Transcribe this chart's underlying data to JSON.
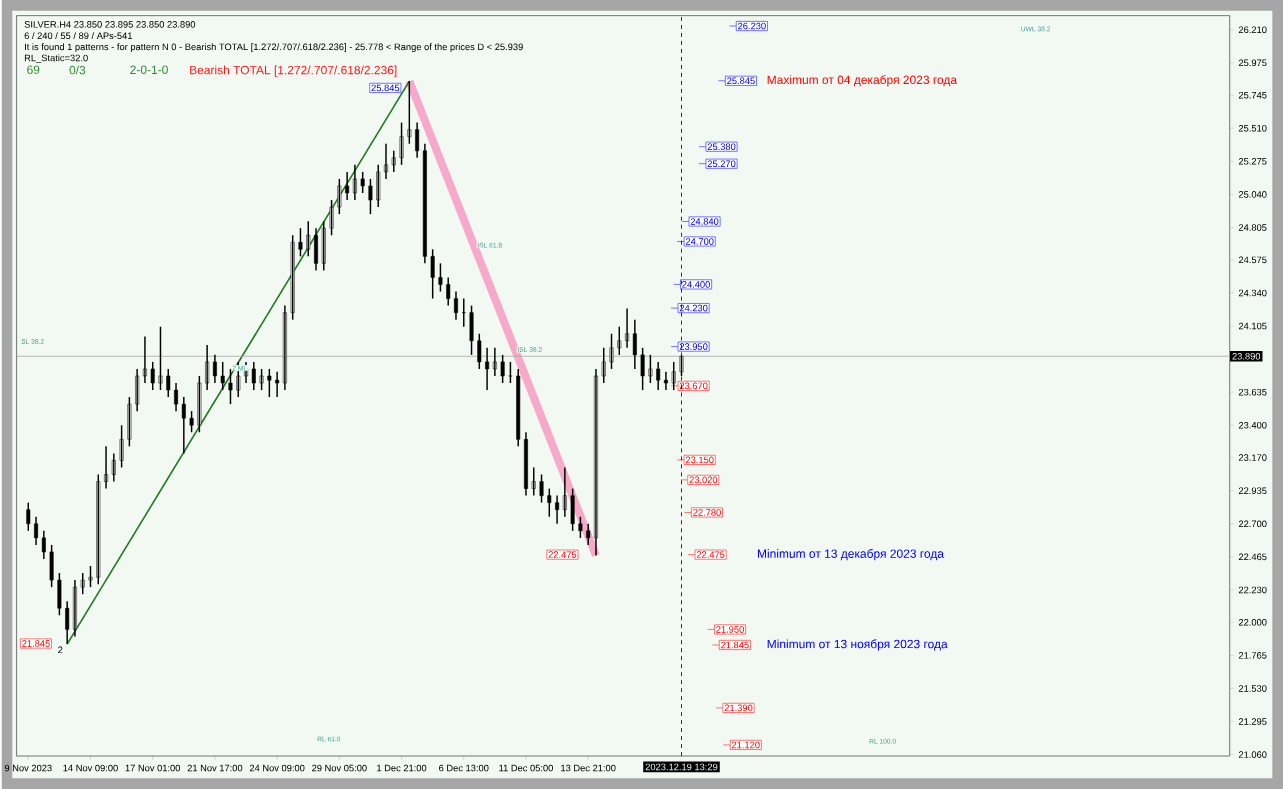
{
  "chart_data": {
    "type": "candlestick",
    "categories": [
      "9 Nov 2023",
      null,
      null,
      null,
      null,
      null,
      null,
      null,
      "14 Nov 09:00",
      null,
      null,
      null,
      null,
      null,
      null,
      null,
      "17 Nov 01:00",
      null,
      null,
      null,
      null,
      null,
      null,
      null,
      "21 Nov 17:00",
      null,
      null,
      null,
      null,
      null,
      null,
      null,
      "24 Nov 09:00",
      null,
      null,
      null,
      null,
      null,
      null,
      null,
      "29 Nov 05:00",
      null,
      null,
      null,
      null,
      null,
      null,
      null,
      "1 Dec 21:00",
      null,
      null,
      null,
      null,
      null,
      null,
      null,
      "6 Dec 13:00",
      null,
      null,
      null,
      null,
      null,
      null,
      null,
      "11 Dec 05:00",
      null,
      null,
      null,
      null,
      null,
      null,
      null,
      "13 Dec 21:00",
      null,
      null,
      null,
      null,
      null,
      null,
      null,
      null,
      null,
      null,
      null,
      null,
      null,
      null,
      null,
      null,
      null,
      null,
      null,
      null,
      null,
      null,
      null,
      null,
      null,
      null,
      null,
      null,
      null,
      null,
      null,
      null,
      null,
      null,
      null,
      null,
      null,
      null,
      null,
      null,
      null,
      null,
      null,
      null,
      null,
      null,
      null,
      null,
      null,
      null,
      null,
      null,
      null,
      null,
      null,
      null,
      null,
      null,
      null,
      null,
      null,
      null,
      null,
      null,
      null,
      null,
      null,
      null,
      null,
      null,
      null,
      null,
      null,
      null,
      null,
      null,
      null,
      null,
      null,
      null,
      null,
      null
    ],
    "ohlc": [
      [
        22.8,
        22.85,
        22.65,
        22.7
      ],
      [
        22.7,
        22.75,
        22.55,
        22.6
      ],
      [
        22.6,
        22.65,
        22.45,
        22.5
      ],
      [
        22.5,
        22.55,
        22.25,
        22.3
      ],
      [
        22.3,
        22.35,
        22.05,
        22.1
      ],
      [
        22.1,
        22.15,
        21.845,
        21.95
      ],
      [
        21.95,
        22.3,
        21.9,
        22.25
      ],
      [
        22.25,
        22.35,
        22.2,
        22.3
      ],
      [
        22.3,
        22.4,
        22.25,
        22.32
      ],
      [
        22.32,
        23.05,
        22.27,
        23.0
      ],
      [
        23.0,
        23.25,
        22.95,
        23.05
      ],
      [
        23.05,
        23.2,
        23.0,
        23.15
      ],
      [
        23.15,
        23.4,
        23.1,
        23.3
      ],
      [
        23.3,
        23.6,
        23.25,
        23.55
      ],
      [
        23.55,
        23.8,
        23.5,
        23.75
      ],
      [
        23.75,
        24.03,
        23.7,
        23.8
      ],
      [
        23.8,
        23.85,
        23.65,
        23.7
      ],
      [
        23.7,
        24.1,
        23.65,
        23.75
      ],
      [
        23.75,
        23.8,
        23.6,
        23.65
      ],
      [
        23.65,
        23.7,
        23.5,
        23.55
      ],
      [
        23.55,
        23.6,
        23.2,
        23.45
      ],
      [
        23.45,
        23.5,
        23.35,
        23.4
      ],
      [
        23.4,
        23.75,
        23.35,
        23.7
      ],
      [
        23.7,
        23.97,
        23.65,
        23.85
      ],
      [
        23.85,
        23.9,
        23.7,
        23.75
      ],
      [
        23.75,
        23.85,
        23.65,
        23.7
      ],
      [
        23.7,
        23.8,
        23.55,
        23.65
      ],
      [
        23.65,
        23.85,
        23.6,
        23.75
      ],
      [
        23.75,
        23.85,
        23.7,
        23.8
      ],
      [
        23.8,
        23.85,
        23.65,
        23.7
      ],
      [
        23.7,
        23.8,
        23.65,
        23.75
      ],
      [
        23.75,
        23.8,
        23.6,
        23.72
      ],
      [
        23.72,
        23.78,
        23.6,
        23.7
      ],
      [
        23.7,
        24.25,
        23.65,
        24.2
      ],
      [
        24.2,
        24.75,
        24.15,
        24.7
      ],
      [
        24.7,
        24.8,
        24.6,
        24.65
      ],
      [
        24.65,
        24.85,
        24.6,
        24.75
      ],
      [
        24.75,
        24.8,
        24.5,
        24.55
      ],
      [
        24.55,
        24.85,
        24.5,
        24.8
      ],
      [
        24.8,
        25.0,
        24.75,
        24.95
      ],
      [
        24.95,
        25.15,
        24.9,
        25.1
      ],
      [
        25.1,
        25.2,
        25.0,
        25.05
      ],
      [
        25.05,
        25.25,
        25.0,
        25.15
      ],
      [
        25.15,
        25.2,
        25.05,
        25.1
      ],
      [
        25.1,
        25.15,
        24.9,
        25.0
      ],
      [
        25.0,
        25.25,
        24.95,
        25.2
      ],
      [
        25.2,
        25.4,
        25.15,
        25.25
      ],
      [
        25.25,
        25.35,
        25.2,
        25.3
      ],
      [
        25.3,
        25.55,
        25.25,
        25.45
      ],
      [
        25.45,
        25.845,
        25.4,
        25.5
      ],
      [
        25.5,
        25.55,
        25.3,
        25.35
      ],
      [
        25.35,
        25.4,
        24.55,
        24.6
      ],
      [
        24.6,
        24.65,
        24.3,
        24.45
      ],
      [
        24.45,
        24.55,
        24.35,
        24.4
      ],
      [
        24.4,
        24.45,
        24.25,
        24.3
      ],
      [
        24.3,
        24.35,
        24.15,
        24.2
      ],
      [
        24.2,
        24.3,
        24.1,
        24.2
      ],
      [
        24.2,
        24.25,
        23.9,
        24.0
      ],
      [
        24.0,
        24.05,
        23.8,
        23.85
      ],
      [
        23.85,
        23.95,
        23.65,
        23.8
      ],
      [
        23.8,
        23.95,
        23.75,
        23.85
      ],
      [
        23.85,
        23.9,
        23.7,
        23.75
      ],
      [
        23.75,
        23.85,
        23.7,
        23.75
      ],
      [
        23.75,
        23.8,
        23.25,
        23.3
      ],
      [
        23.3,
        23.35,
        22.9,
        22.95
      ],
      [
        22.95,
        23.1,
        22.9,
        23.0
      ],
      [
        23.0,
        23.05,
        22.85,
        22.9
      ],
      [
        22.9,
        22.95,
        22.75,
        22.85
      ],
      [
        22.85,
        22.9,
        22.7,
        22.8
      ],
      [
        22.8,
        23.1,
        22.75,
        22.9
      ],
      [
        22.9,
        22.95,
        22.65,
        22.7
      ],
      [
        22.7,
        22.75,
        22.6,
        22.65
      ],
      [
        22.65,
        22.7,
        22.55,
        22.6
      ],
      [
        22.6,
        23.8,
        22.475,
        23.75
      ],
      [
        23.75,
        23.95,
        23.7,
        23.85
      ],
      [
        23.85,
        24.05,
        23.8,
        23.95
      ],
      [
        23.95,
        24.1,
        23.9,
        24.0
      ],
      [
        24.0,
        24.23,
        23.95,
        24.05
      ],
      [
        24.05,
        24.15,
        23.8,
        23.9
      ],
      [
        23.9,
        23.95,
        23.65,
        23.75
      ],
      [
        23.75,
        23.9,
        23.7,
        23.8
      ],
      [
        23.8,
        23.85,
        23.65,
        23.72
      ],
      [
        23.72,
        23.78,
        23.65,
        23.7
      ],
      [
        23.7,
        23.85,
        23.65,
        23.78
      ],
      [
        23.78,
        23.895,
        23.75,
        23.89
      ],
      null,
      null,
      null,
      null,
      null,
      null,
      null,
      null,
      null,
      null,
      null,
      null,
      null,
      null,
      null,
      null,
      null,
      null,
      null,
      null,
      null,
      null,
      null,
      null,
      null,
      null,
      null,
      null,
      null,
      null,
      null,
      null,
      null,
      null,
      null,
      null,
      null,
      null,
      null,
      null,
      null,
      null,
      null,
      null,
      null,
      null,
      null,
      null,
      null,
      null,
      null,
      null,
      null,
      null,
      null,
      null,
      null,
      null,
      null,
      null,
      null,
      null,
      null,
      null,
      null,
      null,
      null,
      null,
      null,
      null
    ],
    "series": [
      {
        "type": "line",
        "color": "#f6a9c9",
        "values": [
          null,
          null,
          null,
          null,
          null,
          null,
          null,
          null,
          null,
          null,
          null,
          null,
          null,
          null,
          null,
          null,
          null,
          null,
          null,
          null,
          null,
          null,
          null,
          null,
          null,
          null,
          null,
          null,
          null,
          null,
          null,
          null,
          null,
          null,
          null,
          null,
          null,
          null,
          null,
          null,
          null,
          null,
          null,
          null,
          null,
          null,
          null,
          null,
          null,
          25.845,
          null,
          null,
          null,
          null,
          null,
          null,
          null,
          null,
          null,
          null,
          null,
          null,
          null,
          null,
          null,
          null,
          null,
          null,
          null,
          null,
          null,
          null,
          null,
          22.475,
          null,
          null,
          null,
          null,
          null,
          null,
          null,
          null,
          null,
          null,
          null,
          null,
          null,
          null,
          null,
          null,
          null,
          null,
          null,
          null,
          null,
          null,
          null,
          null,
          null,
          null,
          null,
          null,
          null,
          null,
          null,
          null,
          null,
          null,
          null,
          null,
          null,
          null,
          null,
          null,
          null,
          null,
          null,
          null,
          null,
          null,
          null,
          null,
          null,
          null,
          null,
          null,
          null,
          null,
          null,
          null,
          null,
          null,
          null,
          null,
          null,
          null,
          null,
          null,
          null,
          null,
          null,
          null,
          null,
          null,
          null,
          null,
          null,
          null,
          null,
          null,
          null,
          null,
          null,
          null,
          null
        ]
      },
      {
        "type": "line",
        "color": "#1e7b1e",
        "values": [
          null,
          null,
          null,
          null,
          null,
          21.845,
          null,
          null,
          null,
          null,
          null,
          null,
          null,
          null,
          null,
          null,
          null,
          null,
          null,
          null,
          null,
          null,
          null,
          null,
          null,
          null,
          null,
          null,
          null,
          null,
          null,
          null,
          null,
          null,
          null,
          null,
          null,
          null,
          null,
          null,
          null,
          null,
          null,
          null,
          null,
          null,
          null,
          null,
          null,
          25.845,
          null,
          null,
          null,
          null,
          null,
          null,
          null,
          null,
          null,
          null,
          null,
          null,
          null,
          null,
          null,
          null,
          null,
          null,
          null,
          null,
          null,
          null,
          null,
          null,
          null,
          null,
          null,
          null,
          null,
          null,
          null,
          null,
          null,
          null,
          null,
          null,
          null,
          null,
          null,
          null,
          null,
          null,
          null,
          null,
          null,
          null,
          null,
          null,
          null,
          null,
          null,
          null,
          null,
          null,
          null,
          null,
          null,
          null,
          null,
          null,
          null,
          null,
          null,
          null,
          null,
          null,
          null,
          null,
          null,
          null,
          null,
          null,
          null,
          null,
          null,
          null,
          null,
          null,
          null,
          null,
          null,
          null,
          null,
          null,
          null,
          null,
          null,
          null,
          null,
          null,
          null,
          null,
          null,
          null,
          null,
          null,
          null,
          null,
          null,
          null,
          null,
          null,
          null,
          null,
          null
        ]
      }
    ],
    "ylim": [
      21.05,
      26.31
    ],
    "yticks": [
      {
        "value": 26.21,
        "label": "26.210"
      },
      {
        "value": 25.975,
        "label": "25.975"
      },
      {
        "value": 25.745,
        "label": "25.745"
      },
      {
        "value": 25.51,
        "label": "25.510"
      },
      {
        "value": 25.275,
        "label": "25.275"
      },
      {
        "value": 25.04,
        "label": "25.040"
      },
      {
        "value": 24.805,
        "label": "24.805"
      },
      {
        "value": 24.575,
        "label": "24.575"
      },
      {
        "value": 24.34,
        "label": "24.340"
      },
      {
        "value": 24.105,
        "label": "24.105"
      },
      {
        "value": 23.635,
        "label": "23.635"
      },
      {
        "value": 23.4,
        "label": "23.400"
      },
      {
        "value": 23.17,
        "label": "23.170"
      },
      {
        "value": 22.935,
        "label": "22.935"
      },
      {
        "value": 22.7,
        "label": "22.700"
      },
      {
        "value": 22.465,
        "label": "22.465"
      },
      {
        "value": 22.23,
        "label": "22.230"
      },
      {
        "value": 22.0,
        "label": "22.000"
      },
      {
        "value": 21.765,
        "label": "21.765"
      },
      {
        "value": 21.53,
        "label": "21.530"
      },
      {
        "value": 21.295,
        "label": "21.295"
      },
      {
        "value": 21.06,
        "label": "21.060"
      }
    ],
    "ref_lines": [
      {
        "axis": "y",
        "value": 23.89,
        "label": "23.890",
        "color": "#a8a8a8"
      }
    ],
    "annotations": [
      "SILVER.H4  23.850 23.895 23.850 23.890",
      "6 / 240 / 55 / 89 / APs-541",
      "It is found 1 patterns  -  for pattern N 0 - Bearish TOTAL [1.272/.707/.618/2.236] - 25.778 < Range of the prices D < 25.939",
      "RL_Static=32.0",
      "69",
      "0/3",
      "2-0-1-0",
      "Bearish TOTAL [1.272/.707/.618/2.236]",
      "25.845",
      "22.475",
      "21.845",
      "2",
      "26.230",
      "25.845",
      "25.380",
      "25.270",
      "24.840",
      "24.700",
      "24.400",
      "24.230",
      "23.950",
      "23.670",
      "23.150",
      "23.020",
      "22.780",
      "22.475",
      "21.950",
      "21.845",
      "21.390",
      "21.120",
      "Maximum от 04 декабря 2023 года",
      "Minimum от 13 декабря 2023 года",
      "Minimum от 13 ноября 2023 года",
      "2 ML",
      "UWL 38.2",
      "RL 100.0",
      "RL 61.8",
      "ISL 61.8",
      "ISL 38.2",
      "SL 38.2",
      "2023.12.19 13:29"
    ]
  }
}
